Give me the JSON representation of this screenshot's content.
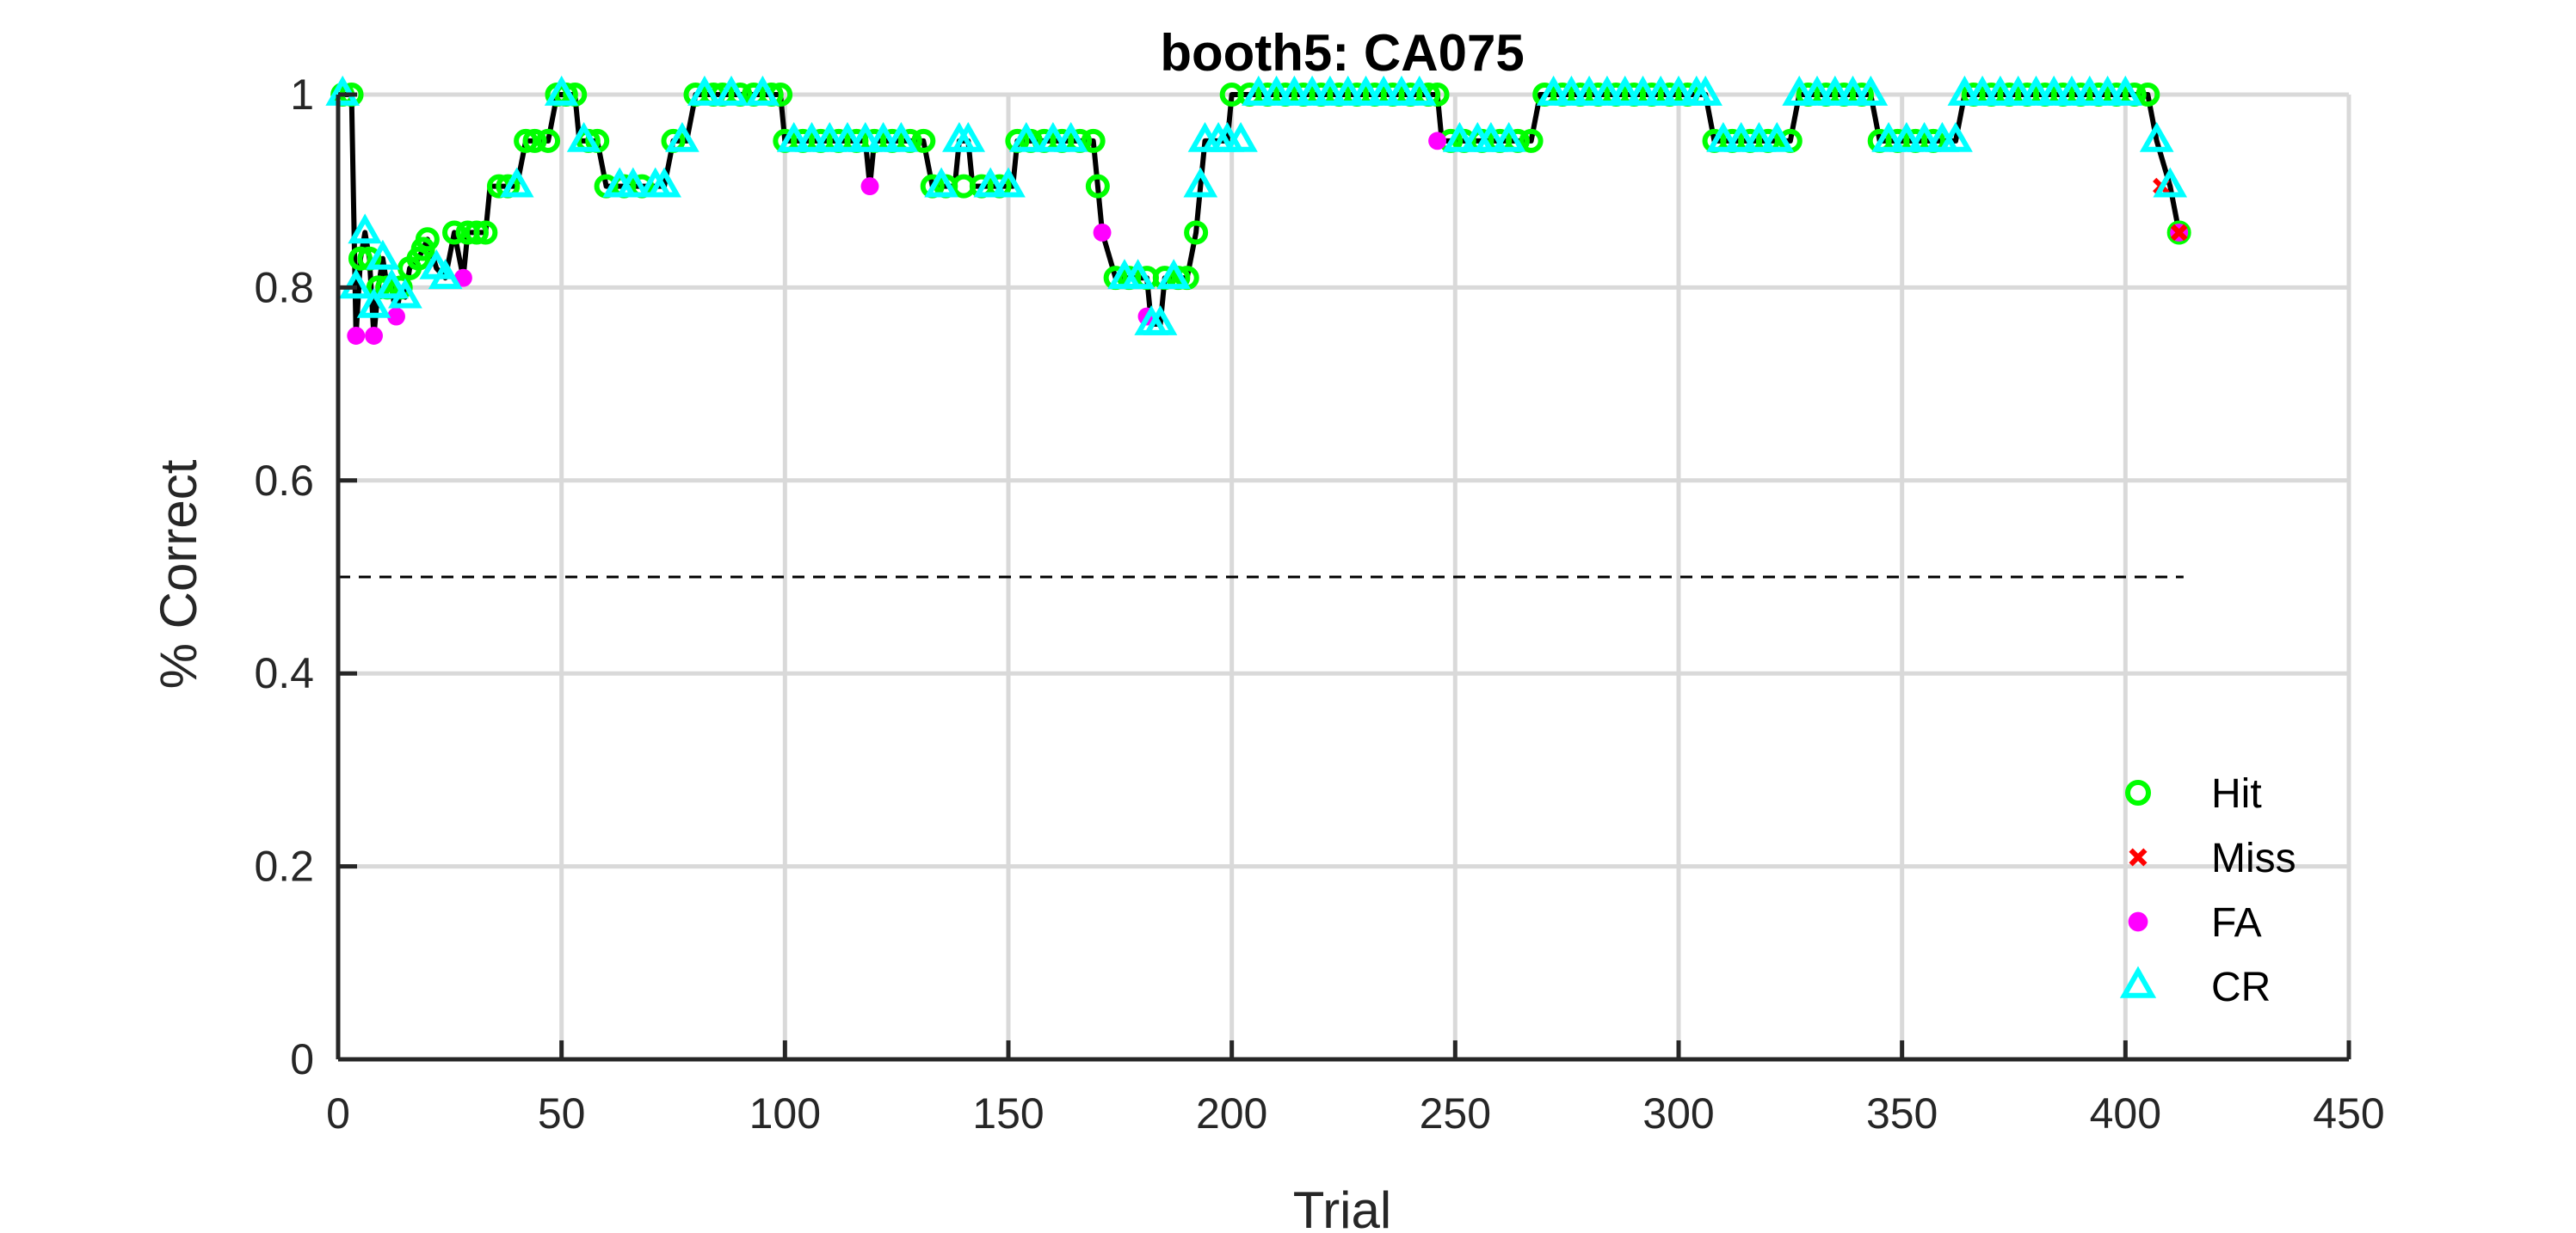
{
  "chart_data": {
    "type": "line",
    "title": "booth5: CA075",
    "xlabel": "Trial",
    "ylabel": "% Correct",
    "xlim": [
      0,
      450
    ],
    "ylim": [
      0,
      1
    ],
    "xticks": [
      0,
      50,
      100,
      150,
      200,
      250,
      300,
      350,
      400,
      450
    ],
    "yticks": [
      0,
      0.2,
      0.4,
      0.6,
      0.8,
      1
    ],
    "xtick_labels": [
      "0",
      "50",
      "100",
      "150",
      "200",
      "250",
      "300",
      "350",
      "400",
      "450"
    ],
    "ytick_labels": [
      "0",
      "0.2",
      "0.4",
      "0.6",
      "0.8",
      "1"
    ],
    "grid": true,
    "chance_line": {
      "y": 0.5,
      "x_range": [
        0,
        413
      ],
      "style": "dashed"
    },
    "legend_placement": "bottom-right",
    "legend": [
      {
        "label": "Hit",
        "marker": "circle-open",
        "color": "#00FF00"
      },
      {
        "label": "Miss",
        "marker": "x",
        "color": "#FF0000"
      },
      {
        "label": "FA",
        "marker": "dot",
        "color": "#FF00FF"
      },
      {
        "label": "CR",
        "marker": "triangle-open",
        "color": "#00FFFF"
      }
    ],
    "series": [
      {
        "name": "Hit",
        "color": "#00FF00",
        "points": [
          [
            1,
            1
          ],
          [
            3,
            1
          ],
          [
            5,
            0.83
          ],
          [
            7,
            0.83
          ],
          [
            9,
            0.8
          ],
          [
            11,
            0.8
          ],
          [
            14,
            0.8
          ],
          [
            16,
            0.82
          ],
          [
            18,
            0.83
          ],
          [
            19,
            0.84
          ],
          [
            20,
            0.85
          ],
          [
            26,
            0.857
          ],
          [
            29,
            0.857
          ],
          [
            31,
            0.857
          ],
          [
            33,
            0.857
          ],
          [
            36,
            0.905
          ],
          [
            38,
            0.905
          ],
          [
            42,
            0.952
          ],
          [
            44,
            0.952
          ],
          [
            47,
            0.952
          ],
          [
            49,
            1
          ],
          [
            51,
            1
          ],
          [
            53,
            1
          ],
          [
            56,
            0.952
          ],
          [
            58,
            0.952
          ],
          [
            60,
            0.905
          ],
          [
            64,
            0.905
          ],
          [
            68,
            0.905
          ],
          [
            75,
            0.952
          ],
          [
            80,
            1
          ],
          [
            84,
            1
          ],
          [
            86,
            1
          ],
          [
            90,
            1
          ],
          [
            93,
            1
          ],
          [
            97,
            1
          ],
          [
            99,
            1
          ],
          [
            100,
            0.952
          ],
          [
            104,
            0.952
          ],
          [
            108,
            0.952
          ],
          [
            112,
            0.952
          ],
          [
            116,
            0.952
          ],
          [
            120,
            0.952
          ],
          [
            124,
            0.952
          ],
          [
            128,
            0.952
          ],
          [
            131,
            0.952
          ],
          [
            133,
            0.905
          ],
          [
            136,
            0.905
          ],
          [
            140,
            0.905
          ],
          [
            144,
            0.905
          ],
          [
            148,
            0.905
          ],
          [
            152,
            0.952
          ],
          [
            155,
            0.952
          ],
          [
            158,
            0.952
          ],
          [
            162,
            0.952
          ],
          [
            166,
            0.952
          ],
          [
            169,
            0.952
          ],
          [
            170,
            0.905
          ],
          [
            174,
            0.81
          ],
          [
            177,
            0.81
          ],
          [
            181,
            0.81
          ],
          [
            185,
            0.81
          ],
          [
            188,
            0.81
          ],
          [
            190,
            0.81
          ],
          [
            192,
            0.857
          ],
          [
            200,
            1
          ],
          [
            204,
            1
          ],
          [
            208,
            1
          ],
          [
            212,
            1
          ],
          [
            216,
            1
          ],
          [
            220,
            1
          ],
          [
            224,
            1
          ],
          [
            228,
            1
          ],
          [
            232,
            1
          ],
          [
            236,
            1
          ],
          [
            240,
            1
          ],
          [
            244,
            1
          ],
          [
            246,
            1
          ],
          [
            249,
            0.952
          ],
          [
            252,
            0.952
          ],
          [
            256,
            0.952
          ],
          [
            260,
            0.952
          ],
          [
            264,
            0.952
          ],
          [
            267,
            0.952
          ],
          [
            270,
            1
          ],
          [
            274,
            1
          ],
          [
            278,
            1
          ],
          [
            282,
            1
          ],
          [
            286,
            1
          ],
          [
            290,
            1
          ],
          [
            294,
            1
          ],
          [
            298,
            1
          ],
          [
            302,
            1
          ],
          [
            308,
            0.952
          ],
          [
            312,
            0.952
          ],
          [
            316,
            0.952
          ],
          [
            320,
            0.952
          ],
          [
            325,
            0.952
          ],
          [
            329,
            1
          ],
          [
            333,
            1
          ],
          [
            337,
            1
          ],
          [
            341,
            1
          ],
          [
            345,
            0.952
          ],
          [
            349,
            0.952
          ],
          [
            353,
            0.952
          ],
          [
            357,
            0.952
          ],
          [
            366,
            1
          ],
          [
            370,
            1
          ],
          [
            374,
            1
          ],
          [
            378,
            1
          ],
          [
            382,
            1
          ],
          [
            386,
            1
          ],
          [
            390,
            1
          ],
          [
            394,
            1
          ],
          [
            398,
            1
          ],
          [
            402,
            1
          ],
          [
            405,
            1
          ],
          [
            412,
            0.857
          ]
        ]
      },
      {
        "name": "Miss",
        "color": "#FF0000",
        "points": [
          [
            408,
            0.905
          ],
          [
            412,
            0.857
          ]
        ]
      },
      {
        "name": "FA",
        "color": "#FF00FF",
        "points": [
          [
            4,
            0.75
          ],
          [
            8,
            0.75
          ],
          [
            13,
            0.77
          ],
          [
            28,
            0.81
          ],
          [
            119,
            0.905
          ],
          [
            171,
            0.857
          ],
          [
            181,
            0.77
          ],
          [
            246,
            0.952
          ],
          [
            412,
            0.857
          ]
        ]
      },
      {
        "name": "CR",
        "color": "#00FFFF",
        "points": [
          [
            1,
            1
          ],
          [
            4,
            0.8
          ],
          [
            6,
            0.857
          ],
          [
            8,
            0.78
          ],
          [
            10,
            0.83
          ],
          [
            12,
            0.8
          ],
          [
            15,
            0.79
          ],
          [
            22,
            0.82
          ],
          [
            24,
            0.81
          ],
          [
            40,
            0.905
          ],
          [
            50,
            1
          ],
          [
            55,
            0.952
          ],
          [
            63,
            0.905
          ],
          [
            66,
            0.905
          ],
          [
            71,
            0.905
          ],
          [
            73,
            0.905
          ],
          [
            77,
            0.952
          ],
          [
            82,
            1
          ],
          [
            88,
            1
          ],
          [
            95,
            1
          ],
          [
            102,
            0.952
          ],
          [
            106,
            0.952
          ],
          [
            110,
            0.952
          ],
          [
            114,
            0.952
          ],
          [
            118,
            0.952
          ],
          [
            122,
            0.952
          ],
          [
            126,
            0.952
          ],
          [
            135,
            0.905
          ],
          [
            139,
            0.952
          ],
          [
            141,
            0.952
          ],
          [
            146,
            0.905
          ],
          [
            150,
            0.905
          ],
          [
            154,
            0.952
          ],
          [
            160,
            0.952
          ],
          [
            164,
            0.952
          ],
          [
            176,
            0.81
          ],
          [
            179,
            0.81
          ],
          [
            182,
            0.762
          ],
          [
            184,
            0.762
          ],
          [
            187,
            0.81
          ],
          [
            193,
            0.905
          ],
          [
            194,
            0.952
          ],
          [
            197,
            0.952
          ],
          [
            199,
            0.952
          ],
          [
            202,
            0.952
          ],
          [
            206,
            1
          ],
          [
            210,
            1
          ],
          [
            214,
            1
          ],
          [
            218,
            1
          ],
          [
            222,
            1
          ],
          [
            226,
            1
          ],
          [
            230,
            1
          ],
          [
            234,
            1
          ],
          [
            238,
            1
          ],
          [
            242,
            1
          ],
          [
            251,
            0.952
          ],
          [
            255,
            0.952
          ],
          [
            258,
            0.952
          ],
          [
            262,
            0.952
          ],
          [
            272,
            1
          ],
          [
            276,
            1
          ],
          [
            280,
            1
          ],
          [
            284,
            1
          ],
          [
            288,
            1
          ],
          [
            292,
            1
          ],
          [
            296,
            1
          ],
          [
            300,
            1
          ],
          [
            304,
            1
          ],
          [
            306,
            1
          ],
          [
            310,
            0.952
          ],
          [
            314,
            0.952
          ],
          [
            318,
            0.952
          ],
          [
            322,
            0.952
          ],
          [
            327,
            1
          ],
          [
            331,
            1
          ],
          [
            335,
            1
          ],
          [
            339,
            1
          ],
          [
            343,
            1
          ],
          [
            347,
            0.952
          ],
          [
            351,
            0.952
          ],
          [
            355,
            0.952
          ],
          [
            359,
            0.952
          ],
          [
            362,
            0.952
          ],
          [
            364,
            1
          ],
          [
            368,
            1
          ],
          [
            372,
            1
          ],
          [
            376,
            1
          ],
          [
            380,
            1
          ],
          [
            384,
            1
          ],
          [
            388,
            1
          ],
          [
            392,
            1
          ],
          [
            396,
            1
          ],
          [
            400,
            1
          ],
          [
            407,
            0.952
          ],
          [
            410,
            0.905
          ]
        ]
      }
    ],
    "performance_line": {
      "name": "% Correct",
      "color": "#000000",
      "points": [
        [
          0,
          1
        ],
        [
          1,
          1
        ],
        [
          3,
          1
        ],
        [
          4,
          0.75
        ],
        [
          5,
          0.83
        ],
        [
          6,
          0.857
        ],
        [
          7,
          0.83
        ],
        [
          8,
          0.75
        ],
        [
          9,
          0.8
        ],
        [
          10,
          0.83
        ],
        [
          11,
          0.8
        ],
        [
          12,
          0.8
        ],
        [
          13,
          0.77
        ],
        [
          14,
          0.8
        ],
        [
          15,
          0.79
        ],
        [
          16,
          0.82
        ],
        [
          18,
          0.83
        ],
        [
          19,
          0.84
        ],
        [
          20,
          0.85
        ],
        [
          22,
          0.82
        ],
        [
          24,
          0.81
        ],
        [
          26,
          0.857
        ],
        [
          28,
          0.81
        ],
        [
          29,
          0.857
        ],
        [
          33,
          0.857
        ],
        [
          34,
          0.905
        ],
        [
          40,
          0.905
        ],
        [
          42,
          0.952
        ],
        [
          47,
          0.952
        ],
        [
          49,
          1
        ],
        [
          53,
          1
        ],
        [
          54,
          0.952
        ],
        [
          58,
          0.952
        ],
        [
          60,
          0.905
        ],
        [
          73,
          0.905
        ],
        [
          75,
          0.952
        ],
        [
          78,
          0.952
        ],
        [
          80,
          1
        ],
        [
          97,
          1
        ],
        [
          99,
          1
        ],
        [
          100,
          0.952
        ],
        [
          118,
          0.952
        ],
        [
          119,
          0.905
        ],
        [
          120,
          0.952
        ],
        [
          131,
          0.952
        ],
        [
          133,
          0.905
        ],
        [
          138,
          0.905
        ],
        [
          139,
          0.952
        ],
        [
          141,
          0.952
        ],
        [
          142,
          0.905
        ],
        [
          151,
          0.905
        ],
        [
          152,
          0.952
        ],
        [
          169,
          0.952
        ],
        [
          170,
          0.905
        ],
        [
          171,
          0.857
        ],
        [
          174,
          0.81
        ],
        [
          181,
          0.81
        ],
        [
          182,
          0.762
        ],
        [
          184,
          0.762
        ],
        [
          185,
          0.81
        ],
        [
          190,
          0.81
        ],
        [
          192,
          0.857
        ],
        [
          193,
          0.905
        ],
        [
          194,
          0.952
        ],
        [
          199,
          0.952
        ],
        [
          200,
          1
        ],
        [
          246,
          1
        ],
        [
          247,
          0.952
        ],
        [
          267,
          0.952
        ],
        [
          269,
          1
        ],
        [
          306,
          1
        ],
        [
          308,
          0.952
        ],
        [
          325,
          0.952
        ],
        [
          327,
          1
        ],
        [
          343,
          1
        ],
        [
          345,
          0.952
        ],
        [
          362,
          0.952
        ],
        [
          364,
          1
        ],
        [
          405,
          1
        ],
        [
          407,
          0.952
        ],
        [
          410,
          0.905
        ],
        [
          412,
          0.857
        ]
      ]
    }
  }
}
